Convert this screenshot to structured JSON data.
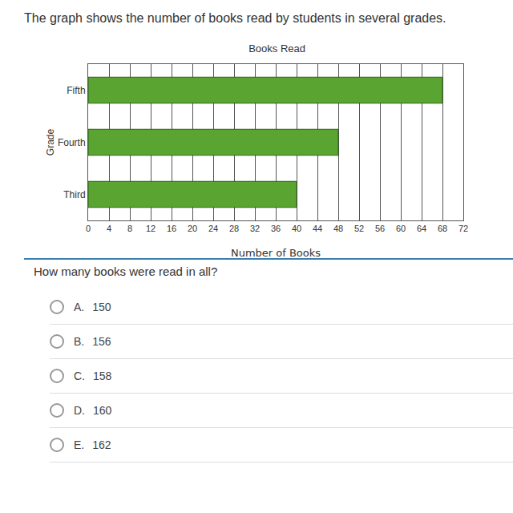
{
  "intro": "The graph shows the number of books read by students in several grades.",
  "chart_data": {
    "type": "bar",
    "title": "Books Read",
    "orientation": "horizontal",
    "categories": [
      "Fifth",
      "Fourth",
      "Third"
    ],
    "values": [
      68,
      48,
      40
    ],
    "color": "#5aa531",
    "x_label": "Number of Books",
    "y_label": "Grade",
    "xlim": [
      0,
      72
    ],
    "xticks": [
      0,
      4,
      8,
      12,
      16,
      20,
      24,
      28,
      32,
      36,
      40,
      44,
      48,
      52,
      56,
      60,
      64,
      68,
      72
    ],
    "grid": true
  },
  "question": "How many books were read in all?",
  "options": [
    {
      "letter": "A.",
      "value": 150
    },
    {
      "letter": "B.",
      "value": 156
    },
    {
      "letter": "C.",
      "value": 158
    },
    {
      "letter": "D.",
      "value": 160
    },
    {
      "letter": "E.",
      "value": 162
    }
  ]
}
